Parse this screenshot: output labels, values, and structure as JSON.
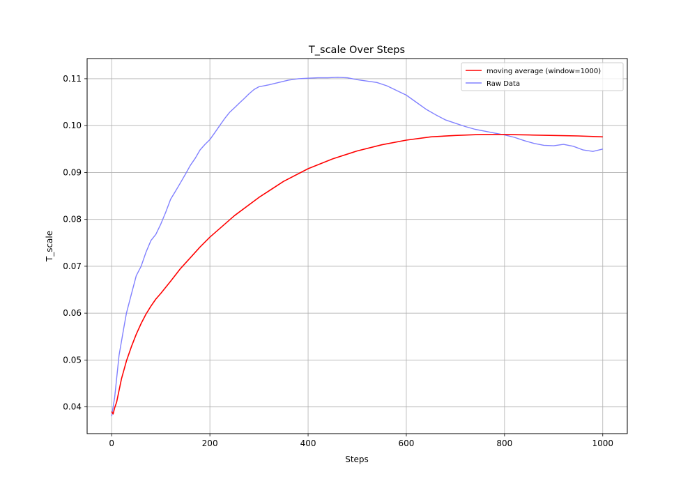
{
  "chart_data": {
    "type": "line",
    "title": "T_scale Over Steps",
    "xlabel": "Steps",
    "ylabel": "T_scale",
    "xlim": [
      -50,
      1050
    ],
    "ylim": [
      0.0343,
      0.1143
    ],
    "xticks": [
      0,
      200,
      400,
      600,
      800,
      1000
    ],
    "yticks": [
      0.04,
      0.05,
      0.06,
      0.07,
      0.08,
      0.09,
      0.1,
      0.11
    ],
    "xtick_labels": [
      "0",
      "200",
      "400",
      "600",
      "800",
      "1000"
    ],
    "ytick_labels": [
      "0.04",
      "0.05",
      "0.06",
      "0.07",
      "0.08",
      "0.09",
      "0.10",
      "0.11"
    ],
    "grid": true,
    "legend_position": "top-right",
    "series": [
      {
        "name": "moving average (window=1000)",
        "color": "#ff0000",
        "x": [
          0,
          3,
          6,
          10,
          15,
          20,
          30,
          40,
          50,
          60,
          70,
          80,
          90,
          100,
          120,
          140,
          160,
          180,
          200,
          250,
          300,
          350,
          400,
          450,
          500,
          550,
          600,
          650,
          700,
          750,
          800,
          850,
          900,
          950,
          1000
        ],
        "y": [
          0.039,
          0.0385,
          0.0398,
          0.041,
          0.0435,
          0.046,
          0.0498,
          0.0528,
          0.0555,
          0.0578,
          0.0598,
          0.0615,
          0.063,
          0.0642,
          0.0668,
          0.0695,
          0.0718,
          0.0741,
          0.0762,
          0.0808,
          0.0847,
          0.0881,
          0.0908,
          0.0929,
          0.0946,
          0.0959,
          0.0969,
          0.0976,
          0.0979,
          0.0981,
          0.0981,
          0.098,
          0.0979,
          0.0978,
          0.0976
        ]
      },
      {
        "name": "Raw Data",
        "color": "#8080ff",
        "x": [
          0,
          3,
          6,
          10,
          15,
          20,
          25,
          30,
          40,
          50,
          60,
          70,
          80,
          90,
          100,
          110,
          120,
          130,
          140,
          150,
          160,
          170,
          180,
          190,
          200,
          210,
          220,
          230,
          240,
          250,
          260,
          270,
          280,
          290,
          300,
          320,
          340,
          360,
          380,
          400,
          420,
          440,
          460,
          480,
          500,
          520,
          540,
          560,
          580,
          600,
          620,
          640,
          660,
          680,
          700,
          720,
          740,
          760,
          780,
          800,
          820,
          840,
          860,
          880,
          900,
          920,
          940,
          960,
          980,
          1000
        ],
        "y": [
          0.038,
          0.04,
          0.042,
          0.046,
          0.051,
          0.054,
          0.057,
          0.06,
          0.064,
          0.068,
          0.07,
          0.073,
          0.0755,
          0.0768,
          0.079,
          0.0815,
          0.0843,
          0.086,
          0.0878,
          0.0896,
          0.0915,
          0.093,
          0.0948,
          0.096,
          0.097,
          0.0985,
          0.1,
          0.1015,
          0.1028,
          0.1038,
          0.1048,
          0.1058,
          0.1068,
          0.1077,
          0.1083,
          0.1087,
          0.1092,
          0.1097,
          0.11,
          0.1101,
          0.1102,
          0.1102,
          0.1103,
          0.1102,
          0.1098,
          0.1095,
          0.1092,
          0.1085,
          0.1075,
          0.1065,
          0.105,
          0.1035,
          0.1023,
          0.1012,
          0.1005,
          0.0998,
          0.0992,
          0.0988,
          0.0984,
          0.098,
          0.0975,
          0.0968,
          0.0962,
          0.0958,
          0.0957,
          0.096,
          0.0956,
          0.0948,
          0.0945,
          0.095
        ]
      }
    ]
  }
}
